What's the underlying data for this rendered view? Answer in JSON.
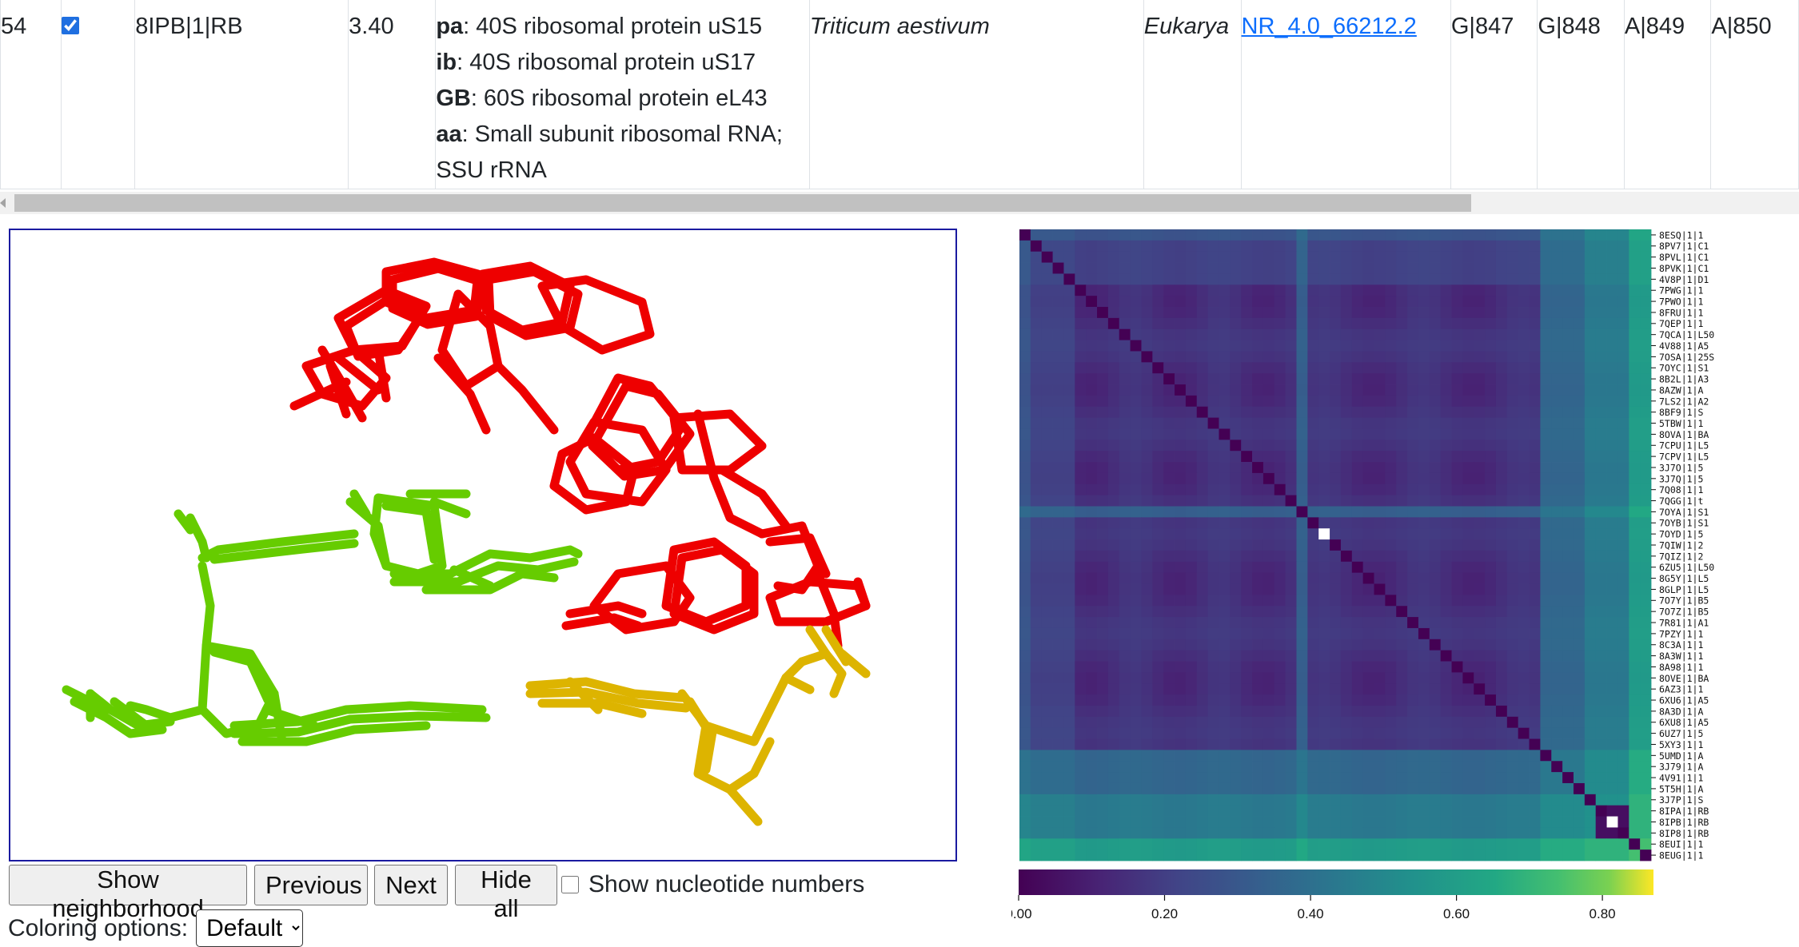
{
  "table_row": {
    "index": "54",
    "checked": true,
    "ife_id": "8IPB|1|RB",
    "resolution": "3.40",
    "chains": [
      {
        "id": "pa",
        "desc": ": 40S ribosomal protein uS15"
      },
      {
        "id": "ib",
        "desc": ": 40S ribosomal protein uS17"
      },
      {
        "id": "GB",
        "desc": ": 60S ribosomal protein eL43"
      },
      {
        "id": "aa",
        "desc": ": Small subunit ribosomal RNA;"
      },
      {
        "id": "",
        "desc": "SSU rRNA"
      }
    ],
    "organism": "Triticum aestivum",
    "domain": "Eukarya",
    "equivalence_class": "NR_4.0_66212.2",
    "nucleotides": [
      "G|847",
      "G|848",
      "A|849",
      "A|850"
    ]
  },
  "buttons": {
    "show_neighborhood": "Show neighborhood",
    "previous": "Previous",
    "next": "Next",
    "hide_all": "Hide all"
  },
  "show_nucleotide_numbers": "Show nucleotide numbers",
  "coloring": {
    "label": "Coloring options:",
    "selected": "Default"
  },
  "viewer": {
    "colors": {
      "red": "#ee0000",
      "green": "#66cc00",
      "yellow": "#ddb400"
    }
  },
  "heatmap": {
    "row_labels": [
      "8ESQ|1|1",
      "8PV7|1|C1",
      "8PVL|1|C1",
      "8PVK|1|C1",
      "4V8P|1|D1",
      "7PWG|1|1",
      "7PWO|1|1",
      "8FRU|1|1",
      "7QEP|1|1",
      "7QCA|1|L50",
      "4V88|1|A5",
      "7OSA|1|25S",
      "7OYC|1|S1",
      "8B2L|1|A3",
      "8AZW|1|A",
      "7LS2|1|A2",
      "8BF9|1|S",
      "5TBW|1|1",
      "8OVA|1|BA",
      "7CPU|1|L5",
      "7CPV|1|L5",
      "3J7O|1|5",
      "3J7Q|1|5",
      "7Q08|1|1",
      "7QGG|1|t",
      "7OYA|1|S1",
      "7OYB|1|S1",
      "7OYD|1|5",
      "7QIW|1|2",
      "7QIZ|1|2",
      "6ZU5|1|L50",
      "8G5Y|1|L5",
      "8GLP|1|L5",
      "7O7Y|1|B5",
      "7O7Z|1|B5",
      "7R81|1|A1",
      "7PZY|1|1",
      "8C3A|1|1",
      "8A3W|1|1",
      "8A98|1|1",
      "8OVE|1|BA",
      "6AZ3|1|1",
      "6XU6|1|A5",
      "8A3D|1|A",
      "6XU8|1|A5",
      "6UZ7|1|5",
      "5XY3|1|1",
      "5UMD|1|A",
      "3J79|1|A",
      "4V91|1|1",
      "5T5H|1|A",
      "3J7P|1|S",
      "8IPA|1|RB",
      "8IPB|1|RB",
      "8IP8|1|RB",
      "8EUI|1|1",
      "8EUG|1|1"
    ],
    "selected_index": 53,
    "colorbar_ticks": [
      "0.00",
      "0.20",
      "0.40",
      "0.60",
      "0.80"
    ]
  }
}
